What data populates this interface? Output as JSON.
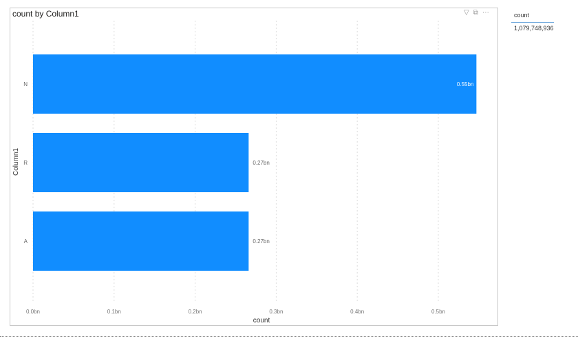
{
  "chart_data": {
    "type": "bar",
    "orientation": "horizontal",
    "title": "count by Column1",
    "xlabel": "count",
    "ylabel": "Column1",
    "categories": [
      "N",
      "R",
      "A"
    ],
    "values": [
      0.547,
      0.266,
      0.266
    ],
    "data_labels": [
      "0.55bn",
      "0.27bn",
      "0.27bn"
    ],
    "xlim": [
      0,
      0.55
    ],
    "xticks": [
      0,
      0.1,
      0.2,
      0.3,
      0.4,
      0.5
    ],
    "xtick_labels": [
      "0.0bn",
      "0.1bn",
      "0.2bn",
      "0.3bn",
      "0.4bn",
      "0.5bn"
    ],
    "grid": "vertical dotted",
    "bar_color": "#118dff"
  },
  "card": {
    "label": "count",
    "value": "1,079,748,936"
  },
  "icons": [
    "filter-icon",
    "focus-mode-icon",
    "more-options-icon"
  ]
}
